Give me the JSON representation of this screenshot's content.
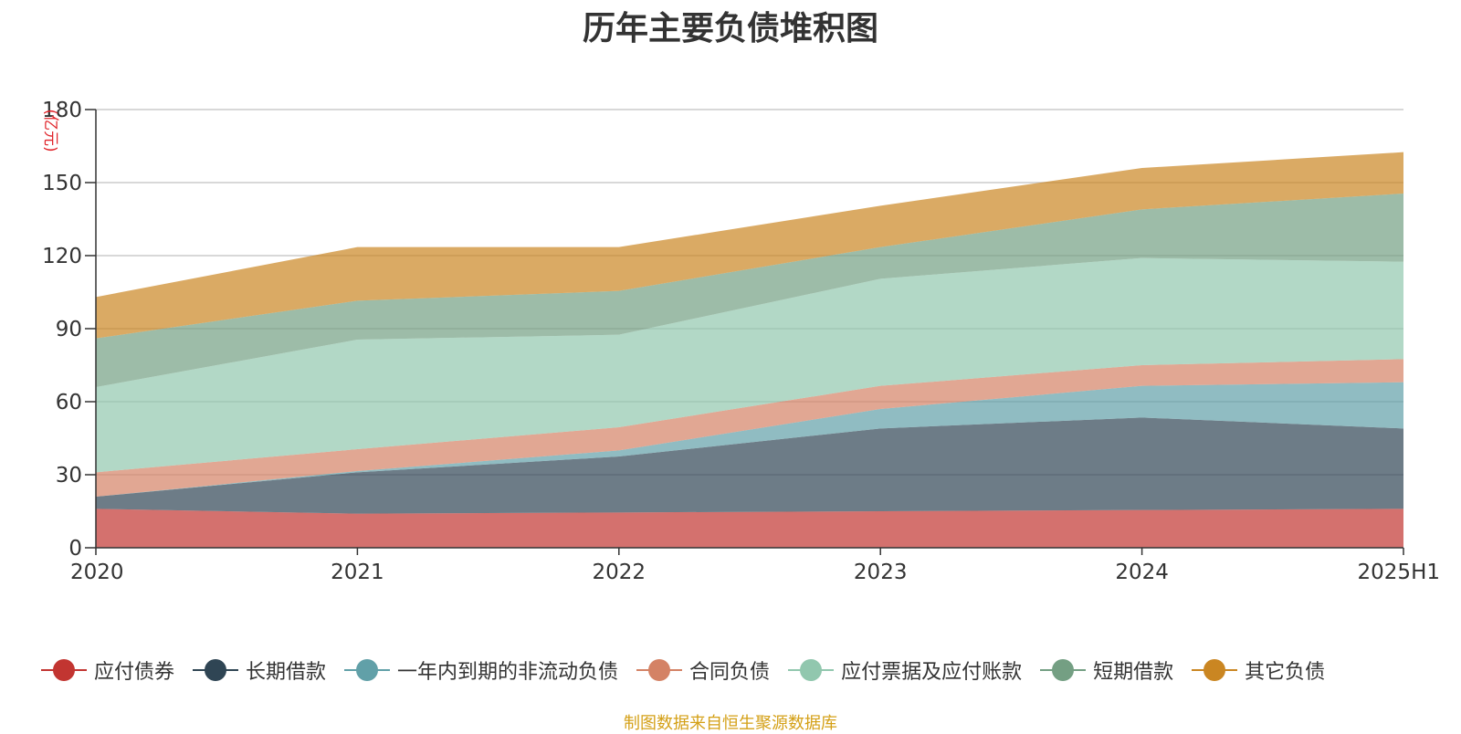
{
  "chart_data": {
    "type": "area",
    "stacked": true,
    "title": "历年主要负债堆积图",
    "unit_label": "(亿元)",
    "categories": [
      "2020",
      "2021",
      "2022",
      "2023",
      "2024",
      "2025H1"
    ],
    "ylim": [
      0,
      180
    ],
    "yticks": [
      0,
      30,
      60,
      90,
      120,
      150,
      180
    ],
    "grid": true,
    "legend_position": "bottom",
    "series": [
      {
        "name": "应付债券",
        "color": "#c23531",
        "values": [
          16,
          14,
          14.5,
          15,
          15.5,
          16
        ]
      },
      {
        "name": "长期借款",
        "color": "#2f4554",
        "values": [
          5,
          17,
          23,
          34,
          38,
          33
        ]
      },
      {
        "name": "一年内到期的非流动负债",
        "color": "#61a0a8",
        "values": [
          0,
          0.5,
          2.5,
          8,
          13,
          19
        ]
      },
      {
        "name": "合同负债",
        "color": "#d48265",
        "values": [
          10,
          9,
          9.5,
          9.5,
          8.5,
          9.5
        ]
      },
      {
        "name": "应付票据及应付账款",
        "color": "#91c7ae",
        "values": [
          35,
          45,
          38,
          44,
          44,
          40
        ]
      },
      {
        "name": "短期借款",
        "color": "#749f83",
        "values": [
          20,
          16,
          18,
          13,
          20,
          28
        ]
      },
      {
        "name": "其它负债",
        "color": "#ca8622",
        "values": [
          17,
          22,
          18,
          17,
          17,
          17
        ]
      }
    ]
  },
  "source_note": "制图数据来自恒生聚源数据库"
}
